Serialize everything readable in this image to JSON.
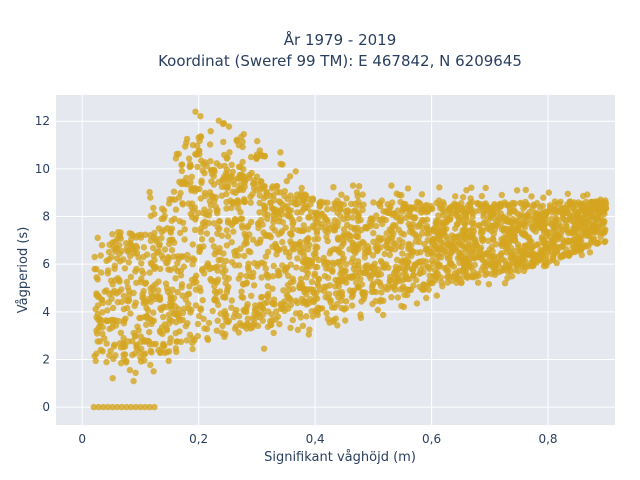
{
  "colors": {
    "plot_bg": "#e5e8ef",
    "grid": "#ffffff",
    "marker": "#d4a520",
    "text": "#2a3f5f"
  },
  "chart_data": {
    "type": "scatter",
    "title_lines": [
      "År 1979 - 2019",
      "Koordinat (Sweref 99 TM): E 467842, N 6209645"
    ],
    "xlabel": "Signifikant våghöjd (m)",
    "ylabel": "Vågperiod (s)",
    "xlim": [
      -0.045,
      0.915
    ],
    "ylim": [
      -0.75,
      13.1
    ],
    "xticks": [
      0,
      0.2,
      0.4,
      0.6,
      0.8
    ],
    "xtick_labels": [
      "0",
      "0,2",
      "0,4",
      "0,6",
      "0,8"
    ],
    "yticks": [
      0,
      2,
      4,
      6,
      8,
      10,
      12
    ],
    "ytick_labels": [
      "0",
      "2",
      "4",
      "6",
      "8",
      "10",
      "12"
    ],
    "grid": true,
    "series": [
      {
        "point_density_envelope": {
          "x": [
            0.02,
            0.05,
            0.1,
            0.15,
            0.2,
            0.25,
            0.3,
            0.4,
            0.5,
            0.6,
            0.7,
            0.8,
            0.9
          ],
          "y_min": [
            1.0,
            1.0,
            1.0,
            1.2,
            1.6,
            1.9,
            2.3,
            3.1,
            3.7,
            4.4,
            5.0,
            5.7,
            6.7
          ],
          "y_max": [
            8.2,
            8.3,
            8.7,
            10.0,
            12.3,
            11.5,
            10.8,
            9.7,
            9.4,
            9.3,
            9.2,
            9.1,
            9.0
          ]
        },
        "zero_period_points": {
          "x_range": [
            0.02,
            0.13
          ],
          "y": 0.0
        }
      }
    ]
  }
}
